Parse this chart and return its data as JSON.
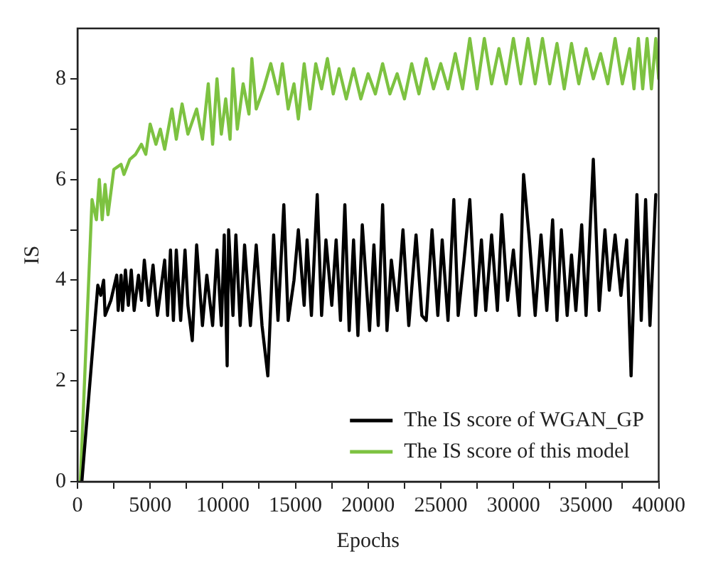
{
  "chart_data": {
    "type": "line",
    "xlabel": "Epochs",
    "ylabel": "IS",
    "xlim": [
      0,
      40000
    ],
    "xticks": [
      0,
      {
        "value": 2500,
        "label": null
      },
      5000,
      {
        "value": 7500,
        "label": null
      },
      10000,
      {
        "value": 12500,
        "label": null
      },
      15000,
      {
        "value": 17500,
        "label": null
      },
      20000,
      {
        "value": 22500,
        "label": null
      },
      25000,
      {
        "value": 27500,
        "label": null
      },
      30000,
      {
        "value": 32500,
        "label": null
      },
      35000,
      {
        "value": 37500,
        "label": null
      },
      40000
    ],
    "ylim": [
      0,
      9
    ],
    "yticks": [
      0,
      {
        "value": 1,
        "label": null
      },
      2,
      {
        "value": 3,
        "label": null
      },
      4,
      {
        "value": 5,
        "label": null
      },
      6,
      {
        "value": 7,
        "label": null
      },
      8
    ],
    "grid": false,
    "legend": "bottom right",
    "marker": "none",
    "line_style": "solid",
    "series": [
      {
        "name": "The IS score of WGAN_GP",
        "color": "#000000",
        "x": [
          300,
          1400,
          1600,
          1800,
          1900,
          2300,
          2700,
          2800,
          3000,
          3100,
          3300,
          3500,
          3700,
          3900,
          4200,
          4400,
          4600,
          4900,
          5200,
          5500,
          6000,
          6200,
          6400,
          6600,
          6800,
          7100,
          7400,
          7600,
          7900,
          8200,
          8600,
          8900,
          9300,
          9600,
          9900,
          10100,
          10300,
          10400,
          10700,
          10900,
          11200,
          11500,
          11900,
          12300,
          12700,
          13100,
          13500,
          13800,
          14200,
          14500,
          14900,
          15200,
          15600,
          15800,
          16100,
          16500,
          16800,
          17100,
          17500,
          17800,
          18100,
          18400,
          18700,
          19000,
          19300,
          19600,
          20100,
          20400,
          20700,
          21000,
          21300,
          21600,
          22000,
          22400,
          22800,
          23300,
          23700,
          24000,
          24400,
          24800,
          25100,
          25500,
          25900,
          26200,
          26600,
          27000,
          27400,
          27800,
          28100,
          28500,
          28900,
          29200,
          29600,
          30000,
          30400,
          30700,
          31100,
          31500,
          31900,
          32300,
          32700,
          33000,
          33300,
          33700,
          34000,
          34300,
          34700,
          35000,
          35500,
          35900,
          36300,
          36600,
          37000,
          37400,
          37800,
          38100,
          38500,
          38800,
          39100,
          39400,
          39800
        ],
        "values": [
          0,
          3.9,
          3.7,
          4.0,
          3.3,
          3.6,
          4.1,
          3.4,
          4.1,
          3.4,
          4.2,
          3.5,
          4.2,
          3.4,
          4.1,
          3.6,
          4.4,
          3.5,
          4.3,
          3.3,
          4.4,
          3.3,
          4.6,
          3.2,
          4.6,
          3.2,
          4.6,
          3.5,
          2.8,
          4.7,
          3.1,
          4.1,
          3.1,
          4.6,
          3.1,
          4.9,
          2.3,
          5.0,
          3.3,
          4.9,
          3.1,
          4.7,
          3.1,
          4.7,
          3.1,
          2.1,
          4.9,
          3.2,
          5.5,
          3.2,
          4.0,
          5.0,
          3.5,
          4.8,
          3.3,
          5.7,
          3.3,
          4.8,
          3.5,
          4.8,
          3.2,
          5.5,
          3.0,
          4.8,
          2.9,
          5.1,
          3.0,
          4.7,
          3.1,
          5.5,
          3.0,
          4.4,
          3.4,
          5.0,
          3.1,
          4.9,
          3.3,
          3.2,
          5.0,
          3.3,
          4.8,
          3.2,
          5.6,
          3.3,
          4.4,
          5.6,
          3.3,
          4.8,
          3.4,
          4.9,
          3.4,
          5.3,
          3.6,
          4.6,
          3.3,
          6.1,
          4.8,
          3.3,
          4.9,
          3.4,
          5.2,
          3.2,
          5.0,
          3.3,
          4.5,
          3.4,
          5.1,
          3.3,
          6.4,
          3.4,
          5.0,
          3.8,
          4.9,
          3.7,
          4.8,
          2.1,
          5.7,
          3.2,
          5.6,
          3.1,
          5.7
        ]
      },
      {
        "name": "The IS score of this model",
        "color": "#7dc241",
        "x": [
          200,
          1000,
          1300,
          1500,
          1700,
          1900,
          2100,
          2500,
          3000,
          3200,
          3600,
          4000,
          4400,
          4700,
          5000,
          5400,
          5700,
          6000,
          6500,
          6800,
          7200,
          7600,
          8200,
          8600,
          9000,
          9300,
          9600,
          9900,
          10200,
          10500,
          10700,
          11000,
          11400,
          11800,
          12000,
          12300,
          12800,
          13300,
          13800,
          14100,
          14500,
          14900,
          15200,
          15600,
          16000,
          16400,
          16800,
          17200,
          17600,
          18000,
          18500,
          19000,
          19500,
          20000,
          20500,
          21000,
          21500,
          22000,
          22500,
          23000,
          23500,
          24000,
          24500,
          25000,
          25500,
          26000,
          26500,
          27000,
          27500,
          28000,
          28500,
          29000,
          29500,
          30000,
          30500,
          31000,
          31500,
          32000,
          32500,
          33000,
          33500,
          34000,
          34500,
          35000,
          35500,
          36000,
          36500,
          37000,
          37500,
          38000,
          38300,
          38600,
          38900,
          39200,
          39500,
          39800,
          40000
        ],
        "values": [
          0,
          5.6,
          5.2,
          6.0,
          5.2,
          5.9,
          5.3,
          6.2,
          6.3,
          6.1,
          6.4,
          6.5,
          6.7,
          6.5,
          7.1,
          6.7,
          7.0,
          6.6,
          7.4,
          6.8,
          7.5,
          6.9,
          7.4,
          6.8,
          7.9,
          6.7,
          8.0,
          6.9,
          7.6,
          6.8,
          8.2,
          7.0,
          7.9,
          7.3,
          8.4,
          7.4,
          7.8,
          8.3,
          7.7,
          8.3,
          7.4,
          7.9,
          7.2,
          8.3,
          7.4,
          8.3,
          7.8,
          8.4,
          7.7,
          8.2,
          7.6,
          8.2,
          7.6,
          8.1,
          7.7,
          8.3,
          7.7,
          8.1,
          7.6,
          8.3,
          7.7,
          8.4,
          7.8,
          8.3,
          7.8,
          8.5,
          7.8,
          8.8,
          7.8,
          8.8,
          7.9,
          8.6,
          7.9,
          8.8,
          7.9,
          8.8,
          7.9,
          8.8,
          7.9,
          8.7,
          7.8,
          8.7,
          7.9,
          8.6,
          8.0,
          8.5,
          7.9,
          8.8,
          7.9,
          8.6,
          7.8,
          8.8,
          7.8,
          8.8,
          7.8,
          8.8,
          8.0
        ]
      }
    ]
  }
}
